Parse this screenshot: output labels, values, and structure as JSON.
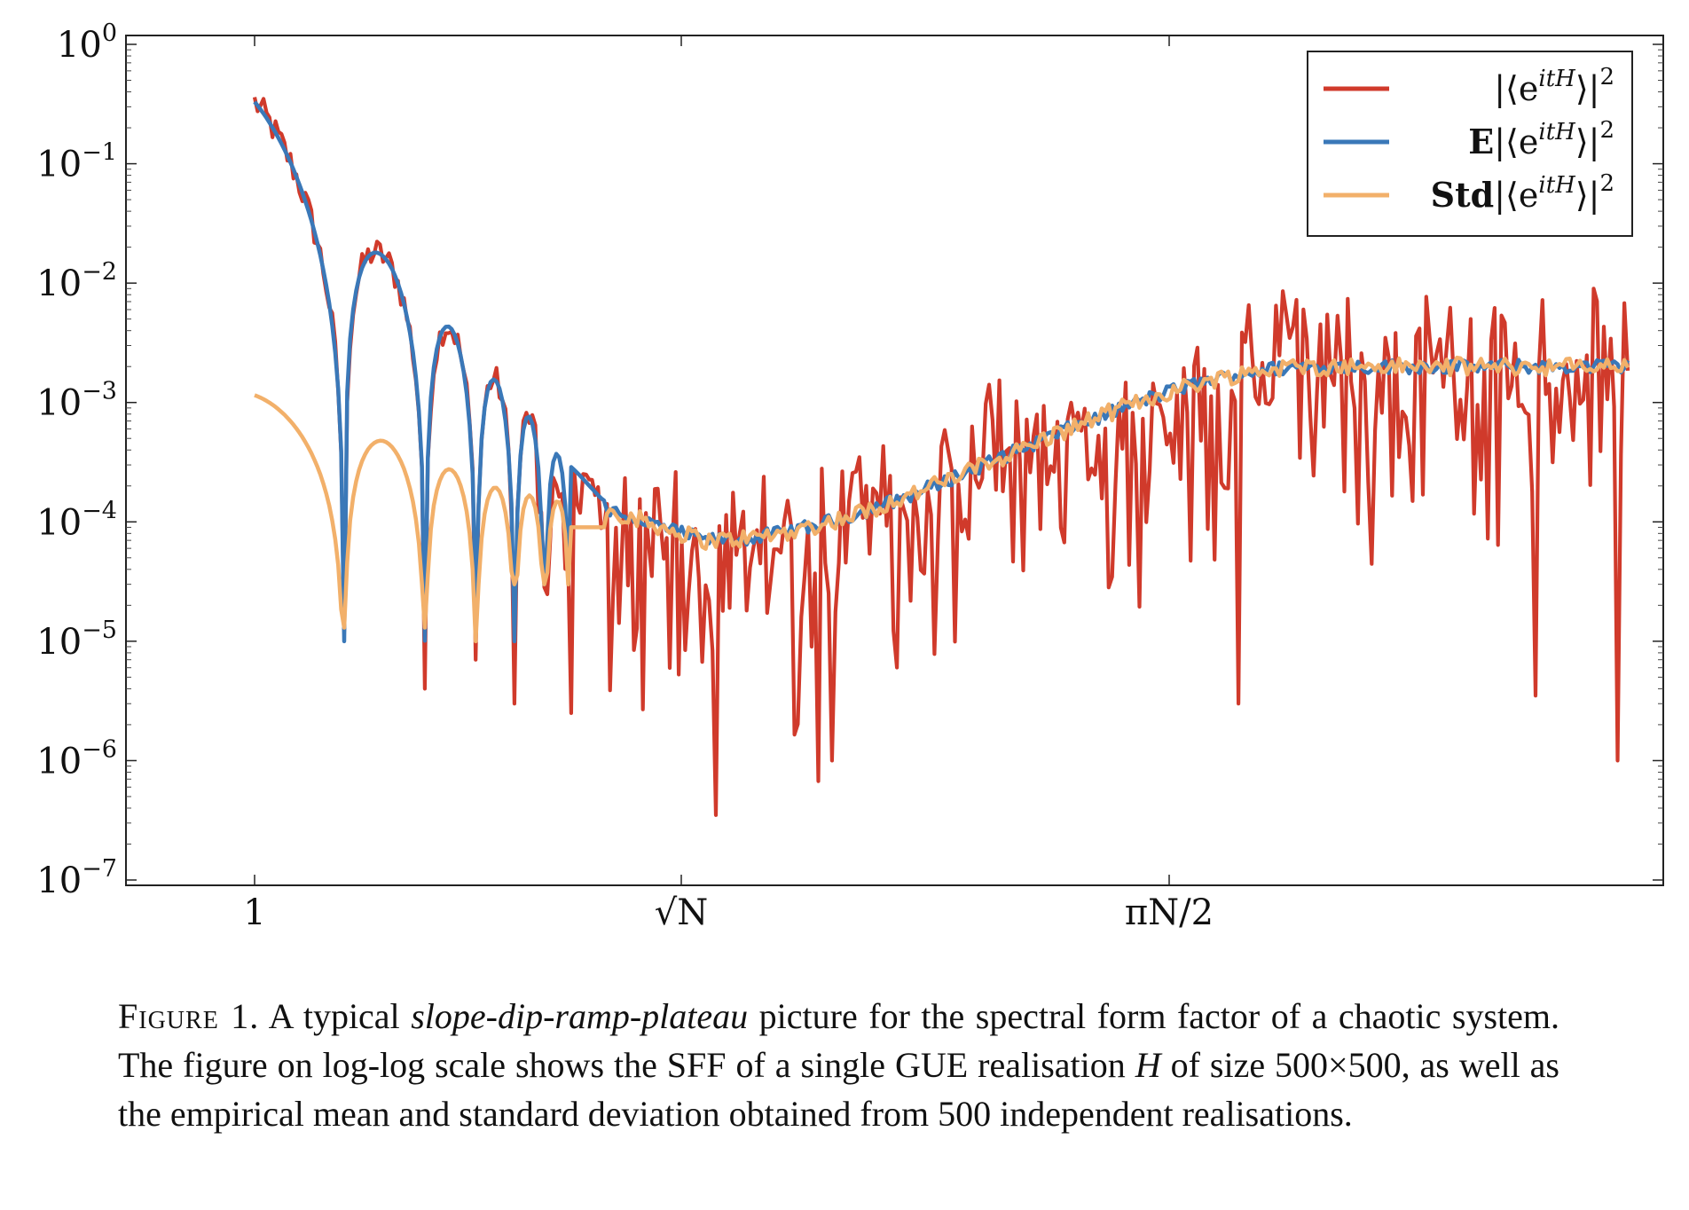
{
  "chart_data": {
    "type": "line",
    "xscale": "log",
    "yscale": "log",
    "ylim": [
      1e-07,
      1
    ],
    "y_ticks": [
      {
        "base": "10",
        "exp": "0"
      },
      {
        "base": "10",
        "exp": "−1"
      },
      {
        "base": "10",
        "exp": "−2"
      },
      {
        "base": "10",
        "exp": "−3"
      },
      {
        "base": "10",
        "exp": "−4"
      },
      {
        "base": "10",
        "exp": "−5"
      },
      {
        "base": "10",
        "exp": "−6"
      },
      {
        "base": "10",
        "exp": "−7"
      }
    ],
    "x_ticks": [
      "1",
      "√N",
      "πN/2"
    ],
    "grid": false,
    "legend_position": "top-right",
    "legend": [
      {
        "prefix": "",
        "text": "|⟨e",
        "sup": "itH",
        "suffix": "⟩|",
        "sup2": "2",
        "color": "#d03a2b"
      },
      {
        "prefix": "E",
        "text": "|⟨e",
        "sup": "itH",
        "suffix": "⟩|",
        "sup2": "2",
        "color": "#3a78b8"
      },
      {
        "prefix": "Std",
        "text": "|⟨e",
        "sup": "itH",
        "suffix": "⟩|",
        "sup2": "2",
        "color": "#f2b06a"
      }
    ],
    "series_style": [
      {
        "color": "#d03a2b"
      },
      {
        "color": "#3a78b8"
      },
      {
        "color": "#f2b06a"
      }
    ],
    "x_range_pos": [
      0,
      3
    ],
    "mean_envelope": {
      "start": 0.33,
      "dip_center": 1.0,
      "dip_level": 7e-05,
      "plateau": 0.002,
      "ramp_start": 1.05,
      "ramp_end": 2.3
    },
    "std_lobe_peaks": [
      {
        "x": 0.0,
        "y": 0.00115
      },
      {
        "x": 0.3,
        "y": 0.00048
      },
      {
        "x": 0.55,
        "y": 0.0002
      },
      {
        "x": 0.7,
        "y": 0.00015
      }
    ],
    "mean_lobe_peaks": [
      {
        "x": 0.3,
        "y": 0.017
      },
      {
        "x": 0.46,
        "y": 0.0042
      },
      {
        "x": 0.56,
        "y": 0.0016
      },
      {
        "x": 0.64,
        "y": 0.0008
      },
      {
        "x": 0.7,
        "y": 0.0004
      },
      {
        "x": 0.76,
        "y": 0.00025
      },
      {
        "x": 0.81,
        "y": 0.00016
      }
    ],
    "dip_zeros_x": [
      0.21,
      0.4,
      0.52,
      0.61,
      0.68,
      0.74
    ],
    "dip_zero_levels": [
      1e-05,
      1.3e-05,
      1e-05,
      3e-05,
      3e-05,
      3e-05
    ],
    "red_deep_spikes": [
      {
        "x": 0.4,
        "y": 4e-06
      },
      {
        "x": 0.52,
        "y": 7e-06
      },
      {
        "x": 0.61,
        "y": 3e-06
      },
      {
        "x": 0.74,
        "y": 2.5e-06
      },
      {
        "x": 1.07,
        "y": 3.5e-07
      },
      {
        "x": 1.31,
        "y": 1e-06
      },
      {
        "x": 2.14,
        "y": 3e-06
      },
      {
        "x": 2.75,
        "y": 3.5e-06
      },
      {
        "x": 2.92,
        "y": 1e-06
      }
    ]
  },
  "caption": {
    "figure_label": "Figure 1.",
    "before_italic": " A typical ",
    "italic": "slope-dip-ramp-plateau",
    "after_italic": " picture for the spectral form factor of a chaotic system. The figure on log-log scale shows the SFF of a single GUE realisation ",
    "math_H": "H",
    "after_H": " of size 500×500, as well as the empirical mean and standard deviation obtained from 500 independent realisations."
  }
}
